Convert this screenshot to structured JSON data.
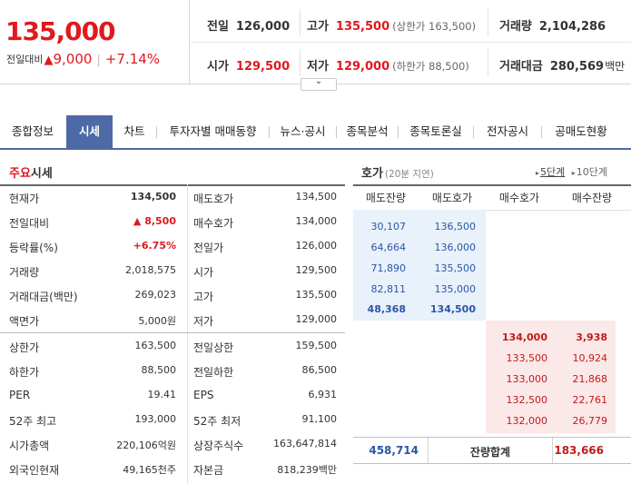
{
  "header": {
    "price": "135,000",
    "change_label": "전일대비",
    "change_amount": "9,000",
    "change_pct": "+7.14%",
    "info": [
      {
        "key": "전일",
        "value": "126,000",
        "red": false,
        "sub": ""
      },
      {
        "key": "고가",
        "value": "135,500",
        "red": true,
        "sub": "(상한가 163,500)"
      },
      {
        "key": "거래량",
        "value": "2,104,286",
        "red": false,
        "sub": ""
      },
      {
        "key": "시가",
        "value": "129,500",
        "red": true,
        "sub": ""
      },
      {
        "key": "저가",
        "value": "129,000",
        "red": true,
        "sub": "(하한가 88,500)"
      },
      {
        "key": "거래대금",
        "value": "280,569",
        "red": false,
        "sub": "백만"
      }
    ]
  },
  "tabs": [
    "종합정보",
    "시세",
    "차트",
    "투자자별 매매동향",
    "뉴스·공시",
    "종목분석",
    "종목토론실",
    "전자공시",
    "공매도현황"
  ],
  "active_tab": 1,
  "main": {
    "title_highlight": "주요",
    "title_rest": "시세",
    "rows": [
      {
        "k": "현재가",
        "v": "134,500",
        "k2": "매도호가",
        "v2": "134,500"
      },
      {
        "k": "전일대비",
        "v": "▲ 8,500",
        "k2": "매수호가",
        "v2": "134,000"
      },
      {
        "k": "등락률(%)",
        "v": "+6.75%",
        "k2": "전일가",
        "v2": "126,000"
      },
      {
        "k": "거래량",
        "v": "2,018,575",
        "k2": "시가",
        "v2": "129,500"
      },
      {
        "k": "거래대금(백만)",
        "v": "269,023",
        "k2": "고가",
        "v2": "135,500"
      },
      {
        "k": "액면가",
        "v": "5,000원",
        "k2": "저가",
        "v2": "129,000"
      },
      {
        "k": "상한가",
        "v": "163,500",
        "k2": "전일상한",
        "v2": "159,500"
      },
      {
        "k": "하한가",
        "v": "88,500",
        "k2": "전일하한",
        "v2": "86,500"
      },
      {
        "k": "PER",
        "v": "19.41",
        "k2": "EPS",
        "v2": "6,931"
      },
      {
        "k": "52주 최고",
        "v": "193,000",
        "k2": "52주 최저",
        "v2": "91,100"
      },
      {
        "k": "시가총액",
        "v": "220,106억원",
        "k2": "상장주식수",
        "v2": "163,647,814"
      },
      {
        "k": "외국인현재",
        "v": "49,165천주",
        "k2": "자본금",
        "v2": "818,239백만"
      }
    ]
  },
  "orderbook": {
    "title": "호가",
    "subtitle": "(20분 지연)",
    "step5": "5단계",
    "step10": "10단계",
    "headers": [
      "매도잔량",
      "매도호가",
      "매수호가",
      "매수잔량"
    ],
    "asks": [
      {
        "qty": "30,107",
        "price": "136,500"
      },
      {
        "qty": "64,664",
        "price": "136,000"
      },
      {
        "qty": "71,890",
        "price": "135,500"
      },
      {
        "qty": "82,811",
        "price": "135,000"
      },
      {
        "qty": "48,368",
        "price": "134,500"
      }
    ],
    "bids": [
      {
        "price": "134,000",
        "qty": "3,938"
      },
      {
        "price": "133,500",
        "qty": "10,924"
      },
      {
        "price": "133,000",
        "qty": "21,868"
      },
      {
        "price": "132,500",
        "qty": "22,761"
      },
      {
        "price": "132,000",
        "qty": "26,779"
      }
    ],
    "total_ask": "458,714",
    "total_label": "잔량합계",
    "total_bid": "183,666"
  }
}
